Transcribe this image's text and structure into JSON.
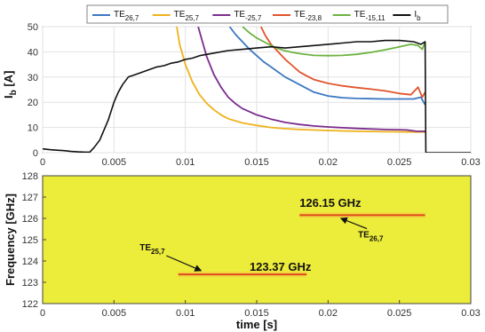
{
  "chart_data": [
    {
      "type": "line",
      "xlim": [
        0,
        0.03
      ],
      "ylim": [
        0,
        50
      ],
      "ylabel": {
        "base": "I",
        "sub": "b",
        "rest": " [A]"
      },
      "xticks": [
        "0",
        "0.005",
        "0.01",
        "0.015",
        "0.02",
        "0.025",
        "0.03"
      ],
      "yticks": [
        "0",
        "10",
        "20",
        "30",
        "40",
        "50"
      ],
      "grid": true,
      "legend_position": "top",
      "series": [
        {
          "name": "TE",
          "sub": "26,7",
          "color": "#3b78c2",
          "x": [
            0.0131,
            0.0135,
            0.014,
            0.0145,
            0.015,
            0.0155,
            0.016,
            0.0165,
            0.017,
            0.0175,
            0.018,
            0.0185,
            0.019,
            0.02,
            0.021,
            0.022,
            0.023,
            0.024,
            0.025,
            0.026,
            0.0265,
            0.0268
          ],
          "y": [
            50,
            47,
            44,
            41,
            38.5,
            36,
            34,
            32,
            30,
            28.5,
            27,
            25.5,
            24,
            22.5,
            21.8,
            21.5,
            21.4,
            21.3,
            21.3,
            21.3,
            22,
            19
          ]
        },
        {
          "name": "TE",
          "sub": "25,7",
          "color": "#efb21a",
          "x": [
            0.0094,
            0.0096,
            0.01,
            0.0105,
            0.011,
            0.0115,
            0.012,
            0.0125,
            0.013,
            0.014,
            0.015,
            0.016,
            0.017,
            0.018,
            0.02,
            0.022,
            0.024,
            0.026,
            0.0268
          ],
          "y": [
            50,
            43,
            35,
            28,
            23,
            19.5,
            17,
            15,
            13.5,
            11.8,
            10.8,
            10,
            9.5,
            9.2,
            8.8,
            8.5,
            8.3,
            8.2,
            8.2
          ]
        },
        {
          "name": "TE",
          "sub": "-25,7",
          "color": "#7b2d8e",
          "x": [
            0.0109,
            0.0112,
            0.0115,
            0.012,
            0.0125,
            0.013,
            0.0135,
            0.014,
            0.015,
            0.016,
            0.017,
            0.018,
            0.019,
            0.02,
            0.022,
            0.024,
            0.0255,
            0.0262,
            0.0268
          ],
          "y": [
            50,
            44,
            38,
            31,
            26,
            22,
            19.5,
            17.5,
            15,
            13.3,
            12,
            11.2,
            10.6,
            10.2,
            9.6,
            9.2,
            9,
            8.5,
            8.5
          ]
        },
        {
          "name": "TE",
          "sub": "-23,8",
          "color": "#e0542c",
          "x": [
            0.0153,
            0.0156,
            0.016,
            0.0165,
            0.017,
            0.0175,
            0.018,
            0.0185,
            0.019,
            0.02,
            0.021,
            0.022,
            0.023,
            0.024,
            0.025,
            0.0258,
            0.0263,
            0.0266,
            0.0268
          ],
          "y": [
            50,
            46.5,
            43,
            40,
            37,
            34.5,
            32,
            30.5,
            29,
            27.5,
            26.5,
            25.8,
            25.2,
            24.5,
            23.5,
            23,
            26,
            22,
            24
          ]
        },
        {
          "name": "TE",
          "sub": "-15,11",
          "color": "#6cb33f",
          "x": [
            0.014,
            0.0145,
            0.015,
            0.0155,
            0.016,
            0.0165,
            0.017,
            0.0175,
            0.018,
            0.019,
            0.02,
            0.021,
            0.022,
            0.023,
            0.024,
            0.025,
            0.0258,
            0.0263,
            0.0266,
            0.0268
          ],
          "y": [
            50,
            47.5,
            45.5,
            44,
            42.5,
            41.3,
            40.4,
            39.8,
            39.3,
            38.6,
            38.5,
            38.6,
            39,
            39.8,
            40.8,
            42,
            43,
            42.5,
            41,
            44
          ]
        },
        {
          "name": "I",
          "sub": "b",
          "color": "#111111",
          "x": [
            0,
            0.0005,
            0.001,
            0.0015,
            0.002,
            0.0025,
            0.003,
            0.0033,
            0.0036,
            0.004,
            0.0043,
            0.0046,
            0.005,
            0.0053,
            0.0056,
            0.006,
            0.0065,
            0.007,
            0.0075,
            0.008,
            0.0085,
            0.009,
            0.0095,
            0.01,
            0.0105,
            0.011,
            0.012,
            0.013,
            0.014,
            0.015,
            0.016,
            0.017,
            0.018,
            0.019,
            0.02,
            0.021,
            0.022,
            0.023,
            0.024,
            0.025,
            0.026,
            0.0265,
            0.0268,
            0.02685,
            0.027,
            0.028,
            0.029,
            0.03
          ],
          "y": [
            1.5,
            1.2,
            1.0,
            0.8,
            0.5,
            0.3,
            0.2,
            0.2,
            2,
            5,
            9,
            13,
            20,
            24,
            27,
            30,
            31,
            32,
            33,
            34,
            34.5,
            35.5,
            36,
            37,
            37.5,
            38.5,
            39.5,
            40.5,
            41,
            41.5,
            42,
            41.5,
            42,
            42.5,
            43,
            43.5,
            44,
            44,
            44.5,
            44.5,
            44,
            43,
            44,
            0,
            0,
            0,
            0,
            0
          ]
        }
      ]
    },
    {
      "type": "heatmap",
      "xlim": [
        0,
        0.03
      ],
      "ylim": [
        122,
        128
      ],
      "xlabel": "time [s]",
      "ylabel": "Frequency [GHz]",
      "xticks": [
        "0",
        "0.005",
        "0.01",
        "0.015",
        "0.02",
        "0.025",
        "0.03"
      ],
      "yticks": [
        "122",
        "123",
        "124",
        "125",
        "126",
        "127",
        "128"
      ],
      "background_color": "#ecec3a",
      "lines": [
        {
          "freq": 123.37,
          "t_start": 0.0095,
          "t_end": 0.0185,
          "color": "#e04a1a"
        },
        {
          "freq": 126.15,
          "t_start": 0.018,
          "t_end": 0.0268,
          "color": "#e04a1a"
        }
      ],
      "annotations": [
        {
          "text": "126.15 GHz",
          "label_t": 0.018,
          "label_f": 126.55
        },
        {
          "text": "123.37 GHz",
          "label_t": 0.0145,
          "label_f": 123.55
        },
        {
          "text": "TE",
          "sub": "25,7",
          "label_t": 0.0068,
          "label_f": 124.5,
          "arrow_t": 0.0111,
          "arrow_f": 123.55
        },
        {
          "text": "TE",
          "sub": "26,7",
          "label_t": 0.0221,
          "label_f": 125.1,
          "arrow_t": 0.0209,
          "arrow_f": 126.0
        }
      ]
    }
  ]
}
